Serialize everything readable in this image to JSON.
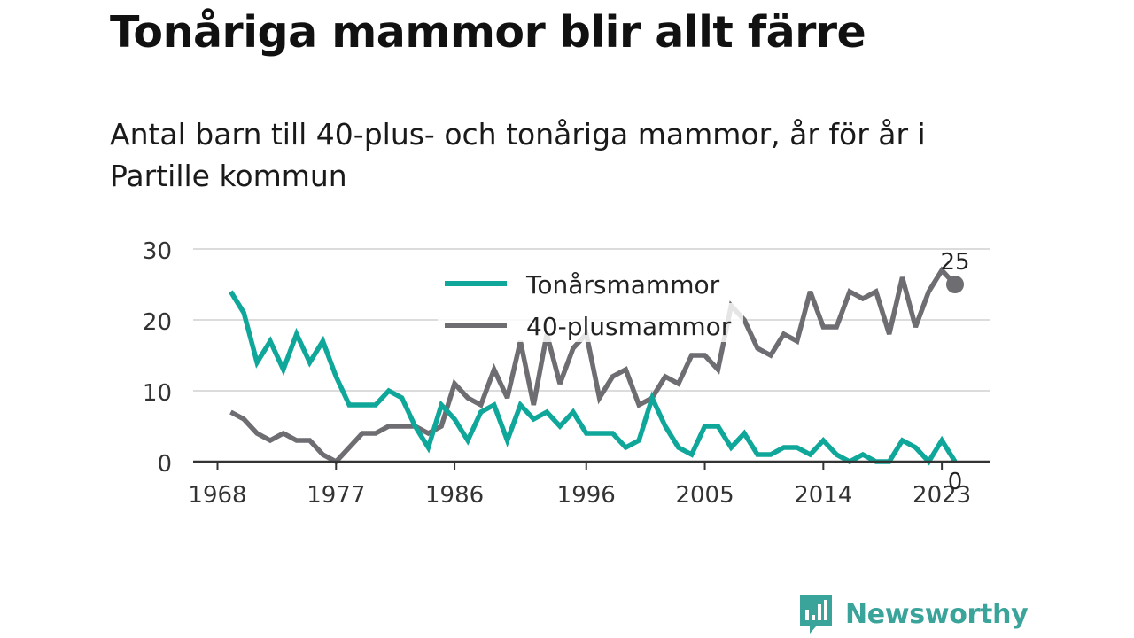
{
  "header": {
    "title": "Tonåriga mammor blir allt färre",
    "subtitle": "Antal barn till 40-plus- och tonåriga mammor, år för år i Partille kommun"
  },
  "logo": {
    "text": "Newsworthy",
    "icon": "bar-chart-speech-bubble-icon"
  },
  "colors": {
    "teens": "#0fa79a",
    "forty_plus": "#6d6d72",
    "grid": "#dcdcdc",
    "axis": "#333333"
  },
  "chart_data": {
    "type": "line",
    "title": "",
    "xlabel": "",
    "ylabel": "",
    "xlim": [
      1968,
      2024
    ],
    "ylim": [
      0,
      30
    ],
    "yticks": [
      "0",
      "10",
      "20",
      "30"
    ],
    "xticks": [
      "1968",
      "1977",
      "1986",
      "1996",
      "2005",
      "2014",
      "2023"
    ],
    "grid": true,
    "legend": "top-center",
    "x": [
      1969,
      1970,
      1971,
      1972,
      1973,
      1974,
      1975,
      1976,
      1977,
      1978,
      1979,
      1980,
      1981,
      1982,
      1983,
      1984,
      1985,
      1986,
      1987,
      1988,
      1989,
      1990,
      1991,
      1992,
      1993,
      1994,
      1995,
      1996,
      1997,
      1998,
      1999,
      2000,
      2001,
      2002,
      2003,
      2004,
      2005,
      2006,
      2007,
      2008,
      2009,
      2010,
      2011,
      2012,
      2013,
      2014,
      2015,
      2016,
      2017,
      2018,
      2019,
      2020,
      2021,
      2022,
      2023,
      2024
    ],
    "series": [
      {
        "name": "Tonårsmammor",
        "values": [
          24,
          21,
          14,
          17,
          13,
          18,
          14,
          17,
          12,
          8,
          8,
          8,
          10,
          9,
          5,
          2,
          8,
          6,
          3,
          7,
          8,
          3,
          8,
          6,
          7,
          5,
          7,
          4,
          4,
          4,
          2,
          3,
          9,
          5,
          2,
          1,
          5,
          5,
          2,
          4,
          1,
          1,
          2,
          2,
          1,
          3,
          1,
          0,
          1,
          0,
          0,
          3,
          2,
          0,
          3,
          0
        ],
        "end_label": "0"
      },
      {
        "name": "40-plusmammor",
        "values": [
          7,
          6,
          4,
          3,
          4,
          3,
          3,
          1,
          0,
          2,
          4,
          4,
          5,
          5,
          5,
          4,
          5,
          11,
          9,
          8,
          13,
          9,
          17,
          8,
          18,
          11,
          16,
          18,
          9,
          12,
          13,
          8,
          9,
          12,
          11,
          15,
          15,
          13,
          22,
          20,
          16,
          15,
          18,
          17,
          24,
          19,
          19,
          24,
          23,
          24,
          18,
          26,
          19,
          24,
          27,
          25
        ],
        "end_label": "25"
      }
    ]
  }
}
